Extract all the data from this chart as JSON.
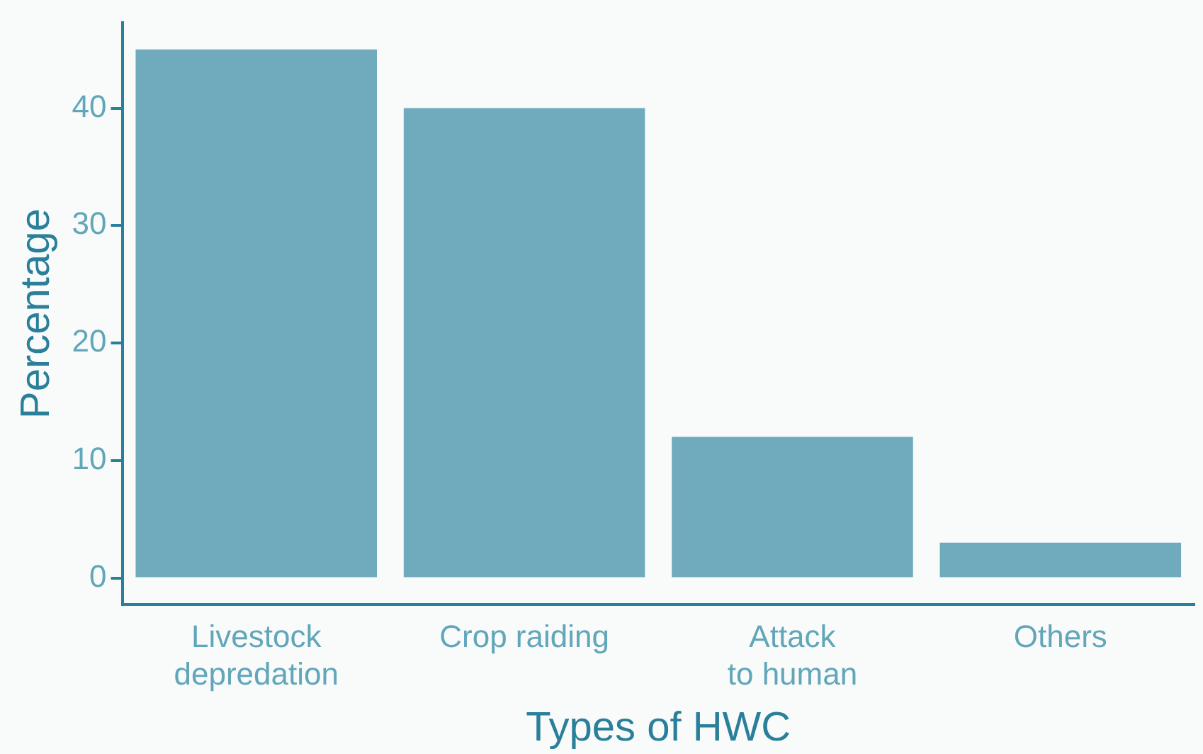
{
  "chart_data": {
    "type": "bar",
    "xlabel": "Types of HWC",
    "ylabel": "Percentage",
    "categories": [
      "Livestock\ndepredation",
      "Crop raiding",
      "Attack\nto human",
      "Others"
    ],
    "values": [
      45,
      40,
      12,
      3
    ],
    "color": "#6fabbd",
    "ylim": [
      -2.25,
      47.25
    ],
    "yticks": [
      0,
      10,
      20,
      30,
      40
    ],
    "grid": false,
    "legend": false
  }
}
